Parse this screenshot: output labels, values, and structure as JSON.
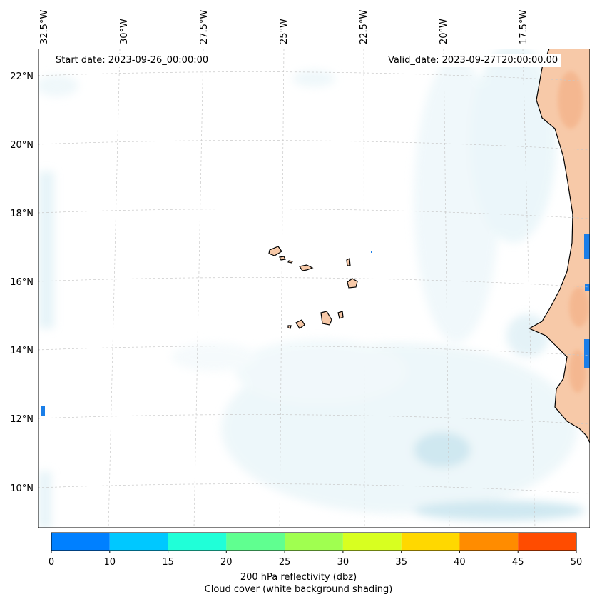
{
  "map": {
    "start_date_text": "Start date: 2023-09-26_00:00:00",
    "valid_date_text": "Valid_date: 2023-09-27T20:00:00.00",
    "lon_labels": [
      "32.5°W",
      "30°W",
      "27.5°W",
      "25°W",
      "22.5°W",
      "20°W",
      "17.5°W"
    ],
    "lat_labels": [
      "22°N",
      "20°N",
      "18°N",
      "16°N",
      "14°N",
      "12°N",
      "10°N"
    ],
    "land_color": "#f7c9a8",
    "cloud_color": "#a9d6e5",
    "coastline_color": "#000000",
    "grid_color": "#c8c8c8"
  },
  "colorbar": {
    "ticks": [
      "0",
      "10",
      "15",
      "20",
      "25",
      "30",
      "35",
      "40",
      "45",
      "50"
    ],
    "colors": [
      "#0080ff",
      "#00c8ff",
      "#20ffd8",
      "#60ff90",
      "#a0ff50",
      "#d8ff20",
      "#ffd800",
      "#ff8c00",
      "#ff4c00"
    ],
    "label_line1": "200 hPa reflectivity (dbz)",
    "label_line2": "Cloud cover (white background shading)"
  }
}
